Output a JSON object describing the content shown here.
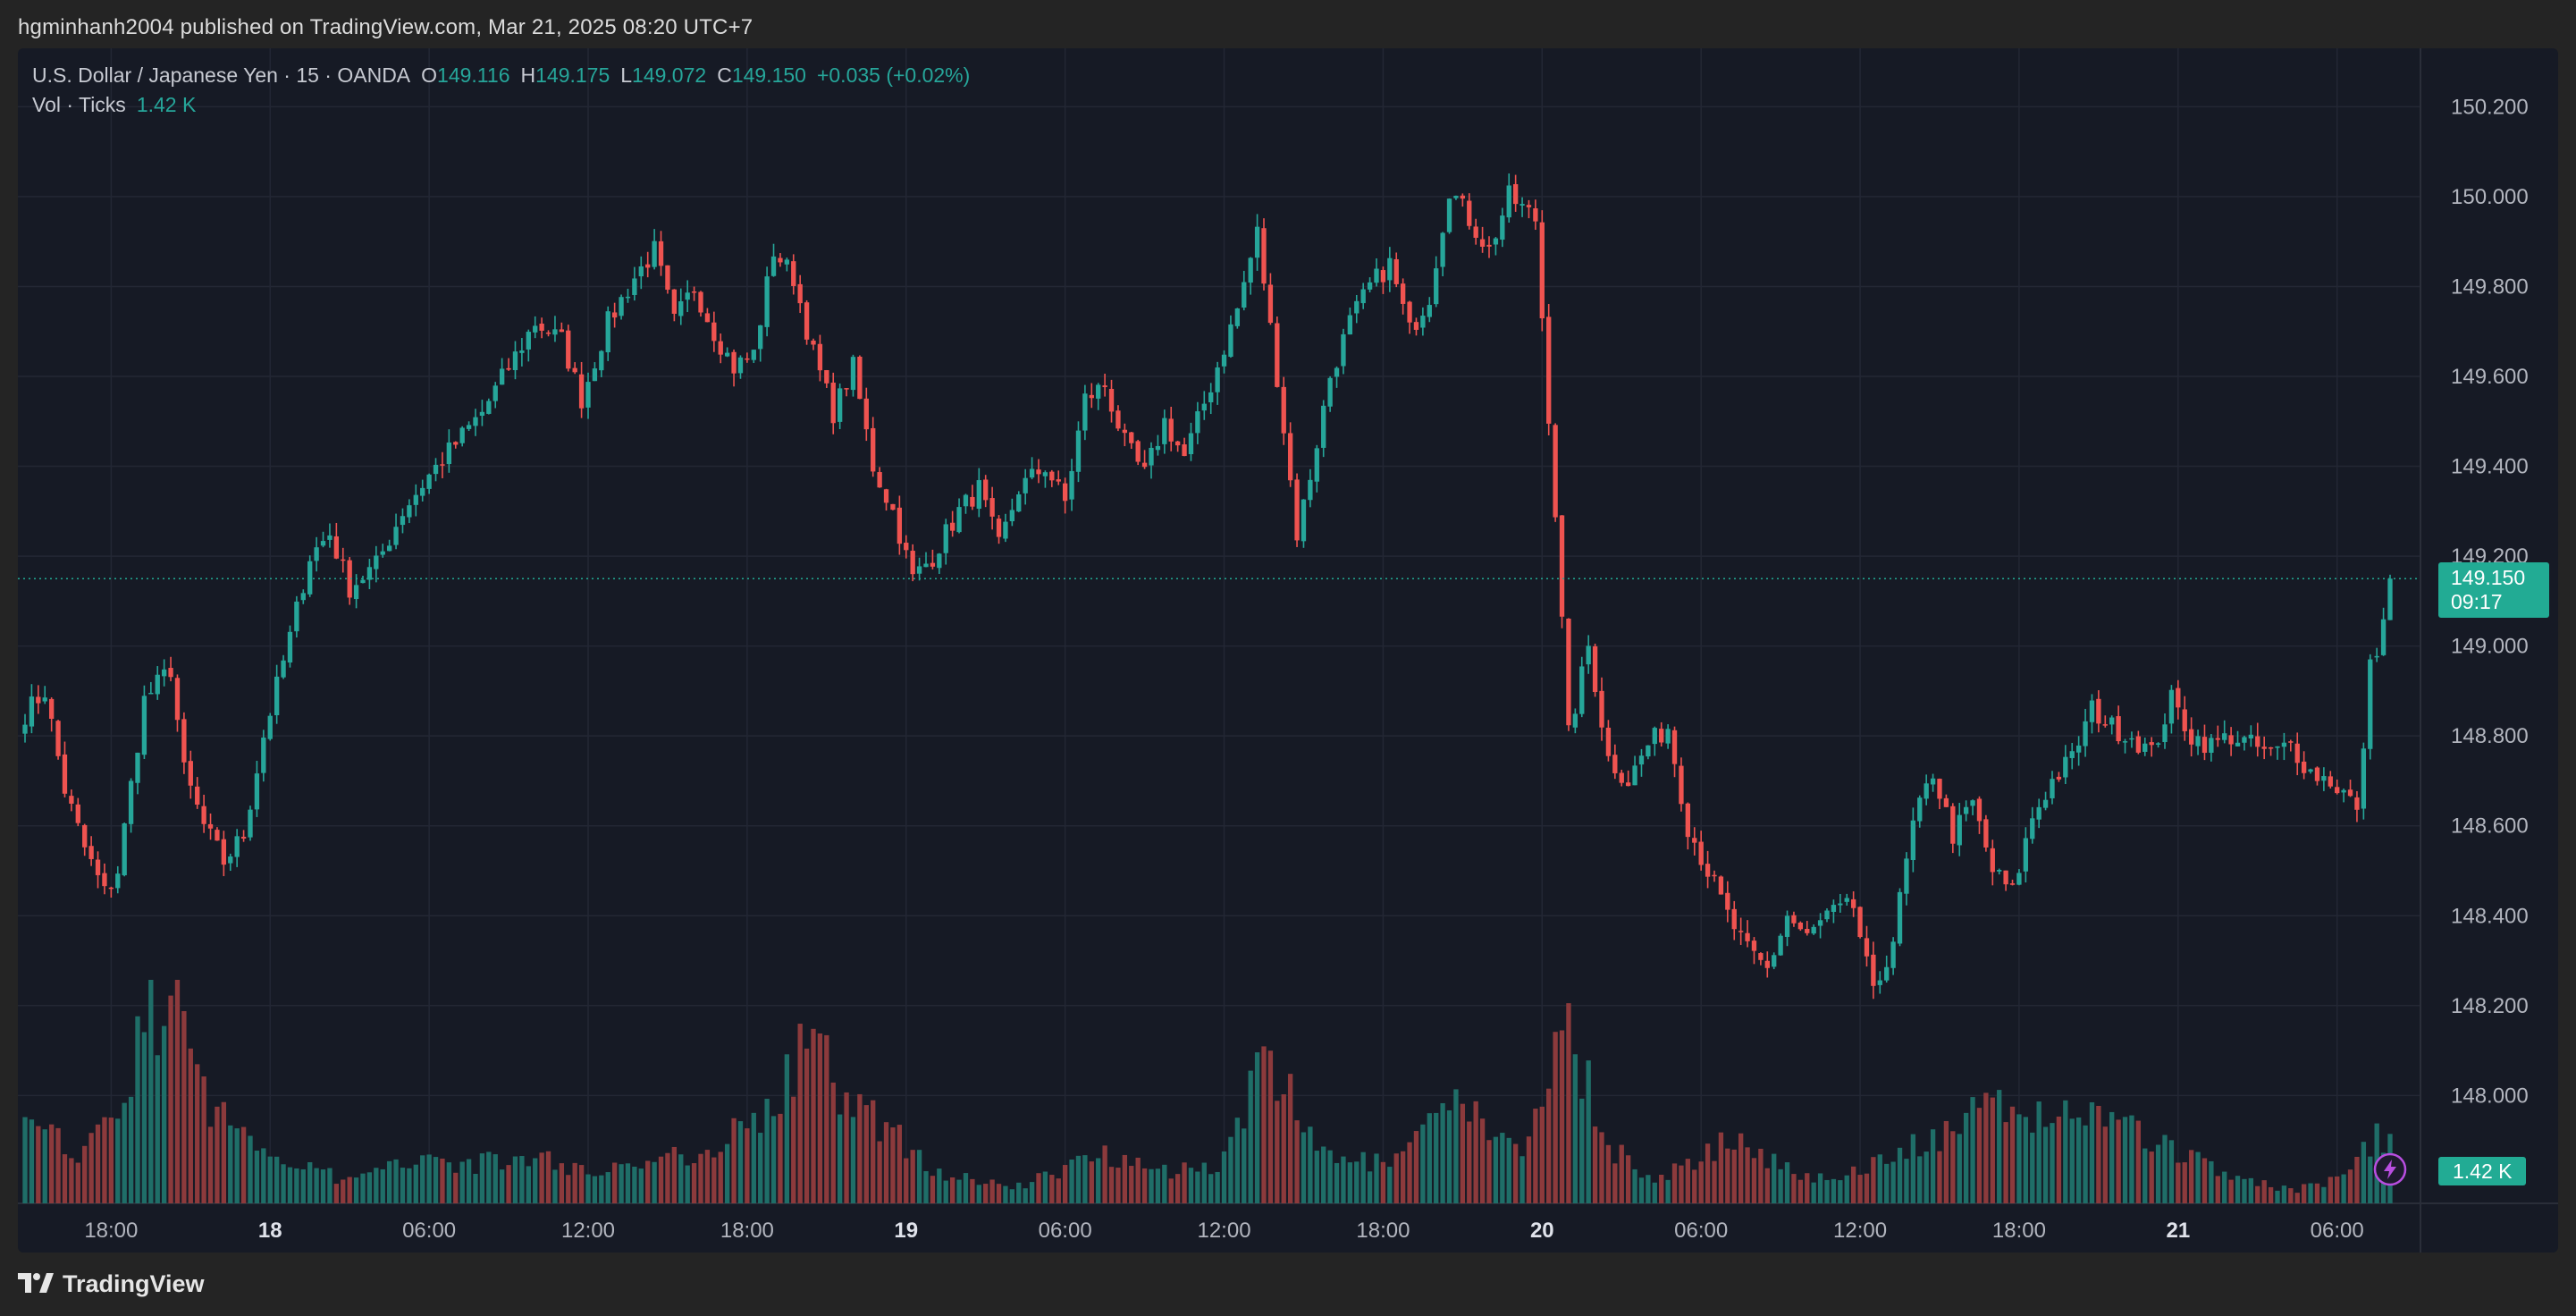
{
  "header": {
    "published_line": "hgminhanh2004 published on TradingView.com, Mar 21, 2025 08:20 UTC+7"
  },
  "legend": {
    "symbol": "U.S. Dollar / Japanese Yen · 15 · OANDA",
    "o_label": "O",
    "o_value": "149.116",
    "h_label": "H",
    "h_value": "149.175",
    "l_label": "L",
    "l_value": "149.072",
    "c_label": "C",
    "c_value": "149.150",
    "change": "+0.035 (+0.02%)",
    "vol_label": "Vol · Ticks",
    "vol_value": "1.42 K"
  },
  "price_tag": {
    "price": "149.150",
    "countdown": "09:17"
  },
  "volume_tag": "1.42 K",
  "footer": {
    "brand": "TradingView"
  },
  "colors": {
    "up": "#26a69a",
    "down": "#ef5350",
    "up_vol": "#1f6e68",
    "down_vol": "#8c3a3c",
    "background": "#161a25",
    "grid": "#232734",
    "axis_text": "#b2b5be"
  },
  "chart_data": {
    "type": "candlestick",
    "symbol": "USDJPY",
    "interval": "15",
    "y_axis": {
      "ticks": [
        "148.000",
        "148.200",
        "148.400",
        "148.600",
        "148.800",
        "149.000",
        "149.200",
        "149.400",
        "149.600",
        "149.800",
        "150.000",
        "150.200"
      ],
      "range": [
        147.76,
        150.33
      ]
    },
    "x_axis": {
      "ticks": [
        {
          "label": "18:00",
          "bold": false,
          "bar": 13
        },
        {
          "label": "18",
          "bold": true,
          "bar": 37
        },
        {
          "label": "06:00",
          "bold": false,
          "bar": 61
        },
        {
          "label": "12:00",
          "bold": false,
          "bar": 85
        },
        {
          "label": "18:00",
          "bold": false,
          "bar": 109
        },
        {
          "label": "19",
          "bold": true,
          "bar": 133
        },
        {
          "label": "06:00",
          "bold": false,
          "bar": 157
        },
        {
          "label": "12:00",
          "bold": false,
          "bar": 181
        },
        {
          "label": "18:00",
          "bold": false,
          "bar": 205
        },
        {
          "label": "20",
          "bold": true,
          "bar": 229
        },
        {
          "label": "06:00",
          "bold": false,
          "bar": 253
        },
        {
          "label": "12:00",
          "bold": false,
          "bar": 277
        },
        {
          "label": "18:00",
          "bold": false,
          "bar": 301
        },
        {
          "label": "21",
          "bold": true,
          "bar": 325
        },
        {
          "label": "06:00",
          "bold": false,
          "bar": 349
        }
      ]
    },
    "current_price": 149.15,
    "price_path": [
      [
        0,
        148.85
      ],
      [
        3,
        148.9
      ],
      [
        6,
        148.68
      ],
      [
        9,
        148.55
      ],
      [
        12,
        148.45
      ],
      [
        14,
        148.5
      ],
      [
        18,
        148.88
      ],
      [
        22,
        148.95
      ],
      [
        24,
        148.72
      ],
      [
        27,
        148.6
      ],
      [
        30,
        148.52
      ],
      [
        33,
        148.58
      ],
      [
        36,
        148.8
      ],
      [
        40,
        149.02
      ],
      [
        43,
        149.2
      ],
      [
        46,
        149.25
      ],
      [
        49,
        149.13
      ],
      [
        53,
        149.18
      ],
      [
        57,
        149.3
      ],
      [
        61,
        149.38
      ],
      [
        65,
        149.45
      ],
      [
        69,
        149.52
      ],
      [
        73,
        149.62
      ],
      [
        77,
        149.72
      ],
      [
        81,
        149.68
      ],
      [
        84,
        149.55
      ],
      [
        88,
        149.72
      ],
      [
        92,
        149.82
      ],
      [
        95,
        149.88
      ],
      [
        98,
        149.72
      ],
      [
        101,
        149.8
      ],
      [
        104,
        149.7
      ],
      [
        107,
        149.62
      ],
      [
        110,
        149.65
      ],
      [
        113,
        149.88
      ],
      [
        116,
        149.82
      ],
      [
        119,
        149.65
      ],
      [
        122,
        149.52
      ],
      [
        125,
        149.62
      ],
      [
        128,
        149.4
      ],
      [
        131,
        149.3
      ],
      [
        134,
        149.15
      ],
      [
        137,
        149.2
      ],
      [
        141,
        149.3
      ],
      [
        144,
        149.35
      ],
      [
        147,
        149.22
      ],
      [
        150,
        149.35
      ],
      [
        154,
        149.4
      ],
      [
        157,
        149.32
      ],
      [
        160,
        149.55
      ],
      [
        163,
        149.58
      ],
      [
        166,
        149.45
      ],
      [
        169,
        149.38
      ],
      [
        172,
        149.5
      ],
      [
        175,
        149.42
      ],
      [
        179,
        149.58
      ],
      [
        183,
        149.75
      ],
      [
        186,
        149.92
      ],
      [
        189,
        149.6
      ],
      [
        192,
        149.25
      ],
      [
        194,
        149.38
      ],
      [
        197,
        149.6
      ],
      [
        200,
        149.72
      ],
      [
        203,
        149.8
      ],
      [
        206,
        149.85
      ],
      [
        209,
        149.7
      ],
      [
        212,
        149.78
      ],
      [
        215,
        150.02
      ],
      [
        218,
        149.95
      ],
      [
        221,
        149.88
      ],
      [
        224,
        150.0
      ],
      [
        228,
        149.95
      ],
      [
        231,
        149.3
      ],
      [
        233,
        148.8
      ],
      [
        236,
        149.0
      ],
      [
        239,
        148.75
      ],
      [
        242,
        148.7
      ],
      [
        245,
        148.78
      ],
      [
        248,
        148.82
      ],
      [
        251,
        148.6
      ],
      [
        254,
        148.5
      ],
      [
        257,
        148.4
      ],
      [
        260,
        148.32
      ],
      [
        263,
        148.28
      ],
      [
        266,
        148.4
      ],
      [
        269,
        148.35
      ],
      [
        272,
        148.4
      ],
      [
        276,
        148.42
      ],
      [
        279,
        148.22
      ],
      [
        282,
        148.35
      ],
      [
        285,
        148.6
      ],
      [
        288,
        148.72
      ],
      [
        291,
        148.58
      ],
      [
        294,
        148.65
      ],
      [
        297,
        148.5
      ],
      [
        300,
        148.45
      ],
      [
        303,
        148.62
      ],
      [
        306,
        148.7
      ],
      [
        309,
        148.75
      ],
      [
        312,
        148.86
      ],
      [
        315,
        148.82
      ],
      [
        318,
        148.8
      ],
      [
        321,
        148.76
      ],
      [
        324,
        148.88
      ],
      [
        327,
        148.8
      ],
      [
        330,
        148.78
      ],
      [
        333,
        148.8
      ],
      [
        336,
        148.78
      ],
      [
        339,
        148.76
      ],
      [
        342,
        148.78
      ],
      [
        345,
        148.72
      ],
      [
        348,
        148.7
      ],
      [
        351,
        148.66
      ],
      [
        352,
        148.62
      ],
      [
        354,
        148.95
      ],
      [
        356,
        149.05
      ],
      [
        357,
        149.15
      ]
    ],
    "volume_path": [
      [
        0,
        0.35
      ],
      [
        8,
        0.25
      ],
      [
        14,
        0.4
      ],
      [
        18,
        0.85
      ],
      [
        22,
        1.0
      ],
      [
        26,
        0.55
      ],
      [
        30,
        0.4
      ],
      [
        36,
        0.25
      ],
      [
        42,
        0.2
      ],
      [
        48,
        0.1
      ],
      [
        54,
        0.15
      ],
      [
        60,
        0.25
      ],
      [
        66,
        0.18
      ],
      [
        72,
        0.2
      ],
      [
        78,
        0.22
      ],
      [
        84,
        0.15
      ],
      [
        90,
        0.18
      ],
      [
        96,
        0.2
      ],
      [
        102,
        0.25
      ],
      [
        108,
        0.35
      ],
      [
        114,
        0.5
      ],
      [
        118,
        0.75
      ],
      [
        122,
        0.6
      ],
      [
        126,
        0.45
      ],
      [
        132,
        0.3
      ],
      [
        138,
        0.15
      ],
      [
        144,
        0.1
      ],
      [
        150,
        0.08
      ],
      [
        156,
        0.15
      ],
      [
        162,
        0.25
      ],
      [
        168,
        0.2
      ],
      [
        174,
        0.15
      ],
      [
        180,
        0.18
      ],
      [
        186,
        0.6
      ],
      [
        190,
        0.55
      ],
      [
        194,
        0.3
      ],
      [
        200,
        0.2
      ],
      [
        206,
        0.18
      ],
      [
        212,
        0.35
      ],
      [
        216,
        0.45
      ],
      [
        220,
        0.4
      ],
      [
        226,
        0.2
      ],
      [
        230,
        0.65
      ],
      [
        233,
        0.9
      ],
      [
        236,
        0.55
      ],
      [
        240,
        0.25
      ],
      [
        246,
        0.1
      ],
      [
        252,
        0.2
      ],
      [
        258,
        0.3
      ],
      [
        264,
        0.2
      ],
      [
        270,
        0.12
      ],
      [
        276,
        0.15
      ],
      [
        282,
        0.22
      ],
      [
        288,
        0.3
      ],
      [
        294,
        0.4
      ],
      [
        300,
        0.45
      ],
      [
        306,
        0.4
      ],
      [
        312,
        0.45
      ],
      [
        318,
        0.35
      ],
      [
        324,
        0.25
      ],
      [
        330,
        0.18
      ],
      [
        336,
        0.1
      ],
      [
        342,
        0.06
      ],
      [
        348,
        0.1
      ],
      [
        352,
        0.2
      ],
      [
        355,
        0.32
      ],
      [
        357,
        0.28
      ]
    ],
    "bars": 358
  }
}
